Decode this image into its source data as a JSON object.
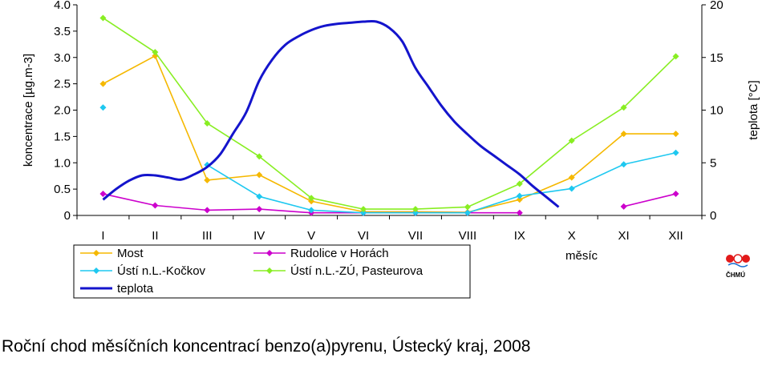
{
  "chart_data": {
    "type": "line",
    "title": "",
    "categories": [
      "I",
      "II",
      "III",
      "IV",
      "V",
      "VI",
      "VII",
      "VIII",
      "IX",
      "X",
      "XI",
      "XII"
    ],
    "xlabel": "měsíc",
    "ylabel": "koncentrace [µg.m-3]",
    "ylabel_secondary": "teplota [°C]",
    "ylim": [
      0,
      4.0
    ],
    "ylim_secondary": [
      0,
      20
    ],
    "yticks": [
      "0",
      "0.5",
      "1.0",
      "1.5",
      "2.0",
      "2.5",
      "3.0",
      "3.5",
      "4.0"
    ],
    "yticks_secondary": [
      "0",
      "5",
      "10",
      "15",
      "20"
    ],
    "grid": false,
    "legend_position": "bottom-left",
    "series": [
      {
        "name": "Most",
        "axis": "left",
        "color": "#f5b800",
        "marker": "diamond",
        "values": [
          2.5,
          3.03,
          0.67,
          0.77,
          0.27,
          0.07,
          0.07,
          0.06,
          0.3,
          0.72,
          1.55,
          1.55
        ]
      },
      {
        "name": "Rudolice v Horách",
        "axis": "left",
        "color": "#cc00cc",
        "marker": "diamond",
        "values": [
          0.41,
          0.19,
          0.1,
          0.12,
          0.05,
          0.05,
          0.05,
          0.05,
          0.05,
          null,
          0.17,
          0.41
        ]
      },
      {
        "name": "Ústí n.L.-Kočkov",
        "axis": "left",
        "color": "#1ec8f0",
        "marker": "diamond",
        "values": [
          2.05,
          null,
          0.96,
          0.36,
          0.1,
          0.05,
          0.05,
          0.05,
          0.37,
          0.51,
          0.97,
          1.19
        ]
      },
      {
        "name": "Ústí n.L.-ZÚ, Pasteurova",
        "axis": "left",
        "color": "#88ee22",
        "marker": "diamond",
        "values": [
          3.75,
          3.1,
          1.75,
          1.12,
          0.33,
          0.12,
          0.12,
          0.16,
          0.6,
          1.42,
          2.05,
          3.02
        ]
      },
      {
        "name": "teplota",
        "axis": "right",
        "color": "#1414cc",
        "marker": "none",
        "smooth": true,
        "x": [
          0,
          0.25,
          0.5,
          0.75,
          1,
          1.25,
          1.5,
          1.75,
          2,
          2.25,
          2.5,
          2.75,
          3,
          3.25,
          3.5,
          3.75,
          4,
          4.25,
          4.5,
          4.75,
          5,
          5.25,
          5.5,
          5.75,
          6,
          6.25,
          6.5,
          6.75,
          7,
          7.25,
          7.5,
          7.75,
          8,
          8.25,
          8.5,
          8.75,
          9,
          9.25,
          9.5,
          9.75,
          10,
          10.25,
          10.5,
          10.75,
          11
        ],
        "values": [
          1.5,
          2.5,
          3.3,
          3.8,
          3.8,
          3.6,
          3.4,
          3.9,
          4.6,
          5.8,
          7.8,
          9.8,
          12.8,
          14.8,
          16.2,
          17.0,
          17.6,
          18.0,
          18.2,
          18.3,
          18.4,
          18.4,
          17.8,
          16.5,
          14.0,
          12.2,
          10.4,
          8.9,
          7.7,
          6.6,
          5.7,
          4.8,
          3.9,
          2.8,
          1.8,
          0.8,
          null,
          null,
          null,
          null,
          null,
          null,
          null,
          null,
          null
        ]
      }
    ]
  },
  "logo": {
    "text": "ČHMÚ"
  },
  "caption": "Roční chod měsíčních koncentrací benzo(a)pyrenu, Ústecký kraj, 2008"
}
